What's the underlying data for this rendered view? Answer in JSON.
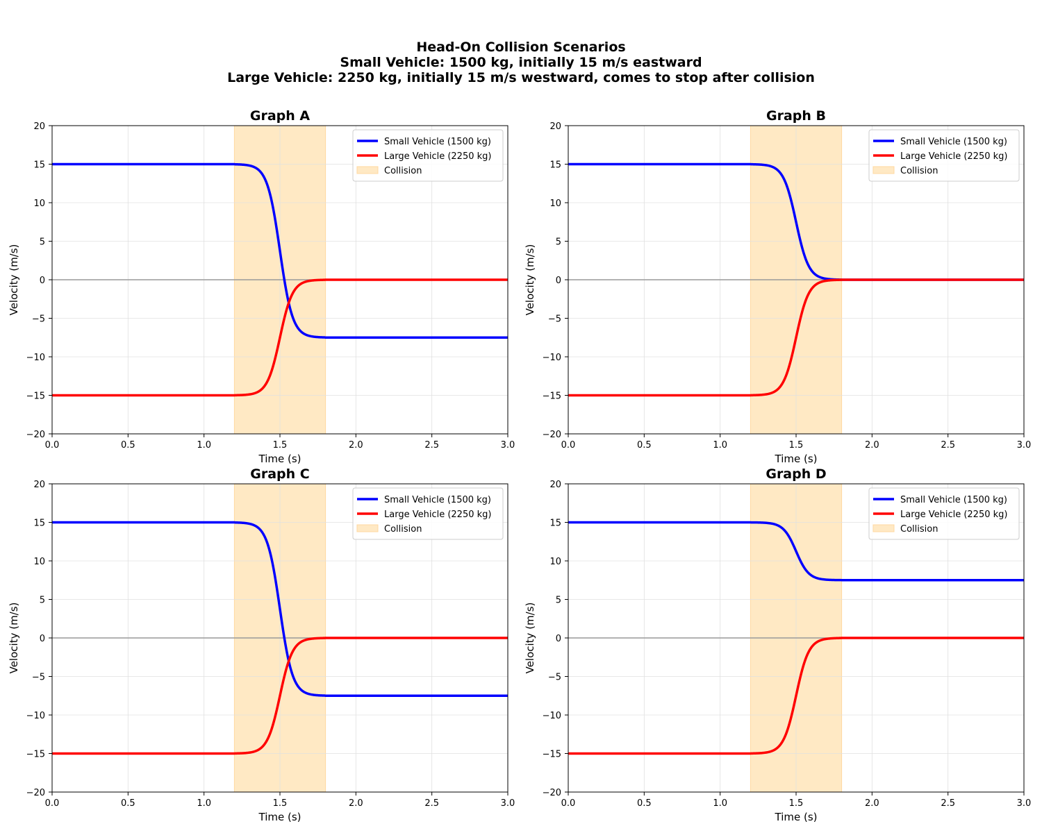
{
  "figure": {
    "title_lines": [
      "Head-On Collision Scenarios",
      "Small Vehicle: 1500 kg, initially 15 m/s eastward",
      "Large Vehicle: 2250 kg, initially 15 m/s westward, comes to stop after collision"
    ]
  },
  "colors": {
    "small": "#0000ff",
    "large": "#ff0000",
    "collision_fill": "#ffe9c4",
    "collision_edge": "#ffd8a0",
    "grid": "#e0e0e0",
    "zero_line": "#999999"
  },
  "chart_data": [
    {
      "type": "line",
      "title": "Graph A",
      "xlabel": "Time (s)",
      "ylabel": "Velocity (m/s)",
      "xlim": [
        0,
        3
      ],
      "ylim": [
        -20,
        20
      ],
      "xticks": [
        0,
        0.5,
        1,
        1.5,
        2,
        2.5,
        3
      ],
      "xtick_labels": [
        "0.0",
        "0.5",
        "1.0",
        "1.5",
        "2.0",
        "2.5",
        "3.0"
      ],
      "yticks": [
        -20,
        -15,
        -10,
        -5,
        0,
        5,
        10,
        15,
        20
      ],
      "ytick_labels": [
        "−20",
        "−15",
        "−10",
        "−5",
        "0",
        "5",
        "10",
        "15",
        "20"
      ],
      "grid": true,
      "legend_position": "top-right",
      "collision_interval": [
        1.2,
        1.8
      ],
      "collision_label": "Collision",
      "series": [
        {
          "name": "Small Vehicle (1500 kg)",
          "color_key": "small",
          "initial": 15,
          "final": -7.5,
          "step_at_end": -7.5
        },
        {
          "name": "Large Vehicle (2250 kg)",
          "color_key": "large",
          "initial": -15,
          "final": 0,
          "step_at_end": 0
        }
      ]
    },
    {
      "type": "line",
      "title": "Graph B",
      "xlabel": "Time (s)",
      "ylabel": "Velocity (m/s)",
      "xlim": [
        0,
        3
      ],
      "ylim": [
        -20,
        20
      ],
      "xticks": [
        0,
        0.5,
        1,
        1.5,
        2,
        2.5,
        3
      ],
      "xtick_labels": [
        "0.0",
        "0.5",
        "1.0",
        "1.5",
        "2.0",
        "2.5",
        "3.0"
      ],
      "yticks": [
        -20,
        -15,
        -10,
        -5,
        0,
        5,
        10,
        15,
        20
      ],
      "ytick_labels": [
        "−20",
        "−15",
        "−10",
        "−5",
        "0",
        "5",
        "10",
        "15",
        "20"
      ],
      "grid": true,
      "legend_position": "top-right",
      "collision_interval": [
        1.2,
        1.8
      ],
      "collision_label": "Collision",
      "series": [
        {
          "name": "Small Vehicle (1500 kg)",
          "color_key": "small",
          "initial": 15,
          "final": 0,
          "step_at_end": 0
        },
        {
          "name": "Large Vehicle (2250 kg)",
          "color_key": "large",
          "initial": -15,
          "final": 0,
          "step_at_end": 0
        }
      ]
    },
    {
      "type": "line",
      "title": "Graph C",
      "xlabel": "Time (s)",
      "ylabel": "Velocity (m/s)",
      "xlim": [
        0,
        3
      ],
      "ylim": [
        -20,
        20
      ],
      "xticks": [
        0,
        0.5,
        1,
        1.5,
        2,
        2.5,
        3
      ],
      "xtick_labels": [
        "0.0",
        "0.5",
        "1.0",
        "1.5",
        "2.0",
        "2.5",
        "3.0"
      ],
      "yticks": [
        -20,
        -15,
        -10,
        -5,
        0,
        5,
        10,
        15,
        20
      ],
      "ytick_labels": [
        "−20",
        "−15",
        "−10",
        "−5",
        "0",
        "5",
        "10",
        "15",
        "20"
      ],
      "grid": true,
      "legend_position": "top-right",
      "collision_interval": [
        1.2,
        1.8
      ],
      "collision_label": "Collision",
      "series": [
        {
          "name": "Small Vehicle (1500 kg)",
          "color_key": "small",
          "initial": 15,
          "final": -7.5,
          "step_at_end": -7.5
        },
        {
          "name": "Large Vehicle (2250 kg)",
          "color_key": "large",
          "initial": -15,
          "final": 0,
          "step_at_end": 0
        }
      ]
    },
    {
      "type": "line",
      "title": "Graph D",
      "xlabel": "Time (s)",
      "ylabel": "Velocity (m/s)",
      "xlim": [
        0,
        3
      ],
      "ylim": [
        -20,
        20
      ],
      "xticks": [
        0,
        0.5,
        1,
        1.5,
        2,
        2.5,
        3
      ],
      "xtick_labels": [
        "0.0",
        "0.5",
        "1.0",
        "1.5",
        "2.0",
        "2.5",
        "3.0"
      ],
      "yticks": [
        -20,
        -15,
        -10,
        -5,
        0,
        5,
        10,
        15,
        20
      ],
      "ytick_labels": [
        "−20",
        "−15",
        "−10",
        "−5",
        "0",
        "5",
        "10",
        "15",
        "20"
      ],
      "grid": true,
      "legend_position": "top-right",
      "collision_interval": [
        1.2,
        1.8
      ],
      "collision_label": "Collision",
      "series": [
        {
          "name": "Small Vehicle (1500 kg)",
          "color_key": "small",
          "initial": 15,
          "final": 7.5,
          "step_at_end": 7.5
        },
        {
          "name": "Large Vehicle (2250 kg)",
          "color_key": "large",
          "initial": -15,
          "final": 0,
          "step_at_end": 0
        }
      ]
    }
  ]
}
